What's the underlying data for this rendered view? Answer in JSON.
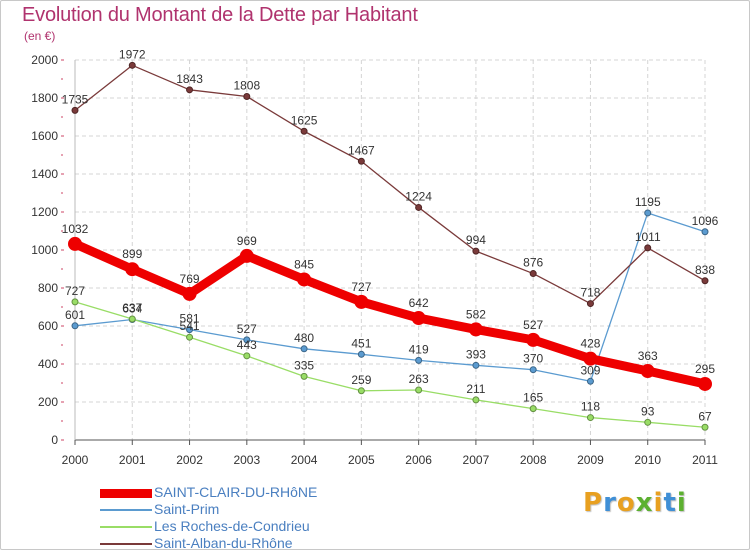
{
  "title": "Evolution du Montant de la Dette par Habitant",
  "subtitle": "(en €)",
  "logo": {
    "text": "Proxiti",
    "colors": [
      "#e8a020",
      "#3f8fd6",
      "#e8a020",
      "#5cb030",
      "#e8a020",
      "#3f8fd6",
      "#5cb030"
    ]
  },
  "chart_data": {
    "type": "line",
    "x": [
      "2000",
      "2001",
      "2002",
      "2003",
      "2004",
      "2005",
      "2006",
      "2007",
      "2008",
      "2009",
      "2010",
      "2011"
    ],
    "ylim": [
      0,
      2000
    ],
    "yticks": [
      0,
      200,
      400,
      600,
      800,
      1000,
      1200,
      1400,
      1600,
      1800,
      2000
    ],
    "grid": "horizontal dashed",
    "legend_position": "bottom-left",
    "series": [
      {
        "name": "SAINT-CLAIR-DU-RHôNE",
        "color": "#ee0000",
        "emphasis": true,
        "values": [
          1032,
          899,
          769,
          969,
          845,
          727,
          642,
          582,
          527,
          428,
          363,
          295
        ]
      },
      {
        "name": "Saint-Prim",
        "color": "#5b9bd0",
        "values": [
          601,
          634,
          581,
          527,
          480,
          451,
          419,
          393,
          370,
          309,
          1195,
          1096
        ]
      },
      {
        "name": "Les Roches-de-Condrieu",
        "color": "#99dd66",
        "values": [
          727,
          637,
          541,
          443,
          335,
          259,
          263,
          211,
          165,
          118,
          93,
          67
        ]
      },
      {
        "name": "Saint-Alban-du-Rhône",
        "color": "#7a3a3a",
        "values": [
          1735,
          1972,
          1843,
          1808,
          1625,
          1467,
          1224,
          994,
          876,
          718,
          1011,
          838
        ]
      }
    ]
  }
}
